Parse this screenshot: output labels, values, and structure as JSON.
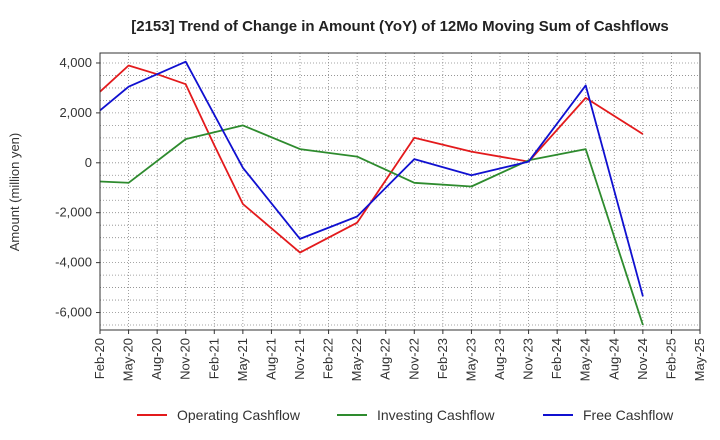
{
  "chart_data": {
    "type": "line",
    "title": "[2153]  Trend of Change in Amount (YoY) of 12Mo Moving Sum of Cashflows",
    "ylabel": "Amount (million yen)",
    "xlabel": "",
    "ylim": [
      -6700,
      4400
    ],
    "yticks": [
      4000,
      2000,
      0,
      -2000,
      -4000,
      -6000
    ],
    "ytick_labels": [
      "4,000",
      "2,000",
      "0",
      "-2,000",
      "-4,000",
      "-6,000"
    ],
    "categories": [
      "Feb-20",
      "May-20",
      "Aug-20",
      "Nov-20",
      "Feb-21",
      "May-21",
      "Aug-21",
      "Nov-21",
      "Feb-22",
      "May-22",
      "Aug-22",
      "Nov-22",
      "Feb-23",
      "May-23",
      "Aug-23",
      "Nov-23",
      "Feb-24",
      "May-24",
      "Aug-24",
      "Nov-24",
      "Feb-25",
      "May-25"
    ],
    "series": [
      {
        "name": "Operating Cashflow",
        "color": "#e31a1c",
        "values": [
          2850,
          3900,
          3550,
          3150,
          700,
          -1650,
          null,
          -3600,
          null,
          -2400,
          null,
          1000,
          null,
          450,
          null,
          50,
          null,
          2600,
          null,
          1150,
          null,
          null
        ]
      },
      {
        "name": "Investing Cashflow",
        "color": "#2e8b2e",
        "values": [
          -750,
          -800,
          null,
          950,
          null,
          1500,
          null,
          550,
          null,
          250,
          null,
          -800,
          null,
          -950,
          null,
          100,
          null,
          550,
          null,
          -6500,
          null,
          null
        ]
      },
      {
        "name": "Free Cashflow",
        "color": "#1010d0",
        "values": [
          2100,
          3050,
          null,
          4050,
          null,
          -200,
          null,
          -3050,
          null,
          -2150,
          null,
          150,
          null,
          -500,
          null,
          50,
          null,
          3100,
          null,
          -5350,
          null,
          null
        ]
      }
    ],
    "grid": true,
    "legend_position": "bottom"
  }
}
